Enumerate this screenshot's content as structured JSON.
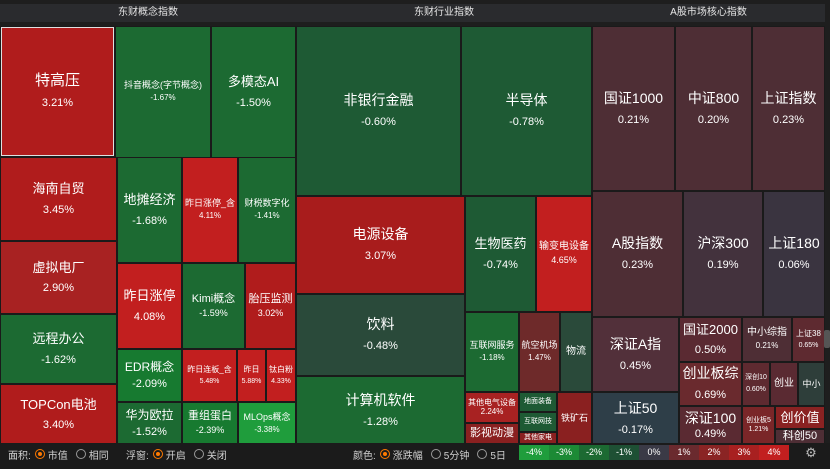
{
  "panels": [
    {
      "title": "东财概念指数"
    },
    {
      "title": "东财行业指数"
    },
    {
      "title": "A股市场核心指数"
    }
  ],
  "tiles": [
    {
      "name": "特高压",
      "pct": "3.21%",
      "color": "#b01c1c"
    },
    {
      "name": "抖音概念(字节概念)",
      "pct": "-1.67%",
      "color": "#1c6a32"
    },
    {
      "name": "多模态AI",
      "pct": "-1.50%",
      "color": "#1c6a32"
    },
    {
      "name": "海南自贸",
      "pct": "3.45%",
      "color": "#b01c1c"
    },
    {
      "name": "地摊经济",
      "pct": "-1.68%",
      "color": "#1c6a32"
    },
    {
      "name": "昨日涨停_含",
      "pct": "4.11%",
      "color": "#c21f1f"
    },
    {
      "name": "财税数字化",
      "pct": "-1.41%",
      "color": "#1c6a32"
    },
    {
      "name": "虚拟电厂",
      "pct": "2.90%",
      "color": "#a82222"
    },
    {
      "name": "昨日涨停",
      "pct": "4.08%",
      "color": "#c21f1f"
    },
    {
      "name": "Kimi概念",
      "pct": "-1.59%",
      "color": "#1c6a32"
    },
    {
      "name": "胎压监测",
      "pct": "3.02%",
      "color": "#b01c1c"
    },
    {
      "name": "远程办公",
      "pct": "-1.62%",
      "color": "#1c6a32"
    },
    {
      "name": "EDR概念",
      "pct": "-2.09%",
      "color": "#177a30"
    },
    {
      "name": "昨日连板_含",
      "pct": "5.48%",
      "color": "#c21f1f"
    },
    {
      "name": "昨日",
      "pct": "5.88%",
      "color": "#c21f1f"
    },
    {
      "name": "钛白粉",
      "pct": "4.33%",
      "color": "#c21f1f"
    },
    {
      "name": "TOPCon电池",
      "pct": "3.40%",
      "color": "#b01c1c"
    },
    {
      "name": "华为欧拉",
      "pct": "-1.52%",
      "color": "#1c6a32"
    },
    {
      "name": "重组蛋白",
      "pct": "-2.39%",
      "color": "#177a30"
    },
    {
      "name": "MLOps概念",
      "pct": "-3.38%",
      "color": "#1f9d3c"
    },
    {
      "name": "非银行金融",
      "pct": "-0.60%",
      "color": "#1e5a34"
    },
    {
      "name": "半导体",
      "pct": "-0.78%",
      "color": "#1e5a34"
    },
    {
      "name": "电源设备",
      "pct": "3.07%",
      "color": "#a81c1c"
    },
    {
      "name": "生物医药",
      "pct": "-0.74%",
      "color": "#1e5a34"
    },
    {
      "name": "输变电设备",
      "pct": "4.65%",
      "color": "#c21f1f"
    },
    {
      "name": "饮料",
      "pct": "-0.48%",
      "color": "#2a4a3a"
    },
    {
      "name": "互联网服务",
      "pct": "-1.18%",
      "color": "#1c6a32"
    },
    {
      "name": "航空机场",
      "pct": "1.47%",
      "color": "#6e2a2a"
    },
    {
      "name": "物流",
      "pct": "",
      "color": "#2a4a3a"
    },
    {
      "name": "计算机软件",
      "pct": "-1.28%",
      "color": "#1c6a32"
    },
    {
      "name": "其他电气设备",
      "pct": "2.24%",
      "color": "#a82222"
    },
    {
      "name": "地面装备",
      "pct": "",
      "color": "#1e5a34"
    },
    {
      "name": "互联网技",
      "pct": "",
      "color": "#1e5a34"
    },
    {
      "name": "影视动漫",
      "pct": "",
      "color": "#8a2020"
    },
    {
      "name": "其他家电",
      "pct": "",
      "color": "#8a2020"
    },
    {
      "name": "铁矿石",
      "pct": "",
      "color": "#8a2020"
    },
    {
      "name": "国证1000",
      "pct": "0.21%",
      "color": "#4e2e35"
    },
    {
      "name": "中证800",
      "pct": "0.20%",
      "color": "#4e2e35"
    },
    {
      "name": "上证指数",
      "pct": "0.23%",
      "color": "#4e2e35"
    },
    {
      "name": "A股指数",
      "pct": "0.23%",
      "color": "#4e2e35"
    },
    {
      "name": "沪深300",
      "pct": "0.19%",
      "color": "#43323d"
    },
    {
      "name": "上证180",
      "pct": "0.06%",
      "color": "#3a3440"
    },
    {
      "name": "深证A指",
      "pct": "0.45%",
      "color": "#52303a"
    },
    {
      "name": "国证2000",
      "pct": "0.50%",
      "color": "#5a2a32"
    },
    {
      "name": "中小综指",
      "pct": "0.21%",
      "color": "#4e2e35"
    },
    {
      "name": "上证38",
      "pct": "0.65%",
      "color": "#5e2a30"
    },
    {
      "name": "创业板综",
      "pct": "0.69%",
      "color": "#6a2a2e"
    },
    {
      "name": "深创10",
      "pct": "0.60%",
      "color": "#5e2a30"
    },
    {
      "name": "创业",
      "pct": "",
      "color": "#5a2a32"
    },
    {
      "name": "中小",
      "pct": "",
      "color": "#2e3e3a"
    },
    {
      "name": "上证50",
      "pct": "-0.17%",
      "color": "#2e3e48"
    },
    {
      "name": "深证100",
      "pct": "0.49%",
      "color": "#5a2a32"
    },
    {
      "name": "创业板5",
      "pct": "1.21%",
      "color": "#7a2628"
    },
    {
      "name": "创价值",
      "pct": "",
      "color": "#8a2222"
    },
    {
      "name": "科创50",
      "pct": "",
      "color": "#4e2e35"
    }
  ],
  "bottom": {
    "area_label": "面积:",
    "area_options": [
      "市值",
      "相同"
    ],
    "float_label": "浮窗:",
    "float_options": [
      "开启",
      "关闭"
    ],
    "color_label": "颜色:",
    "color_options": [
      "涨跌幅",
      "5分钟",
      "5日"
    ],
    "legend": [
      {
        "label": "-4%",
        "color": "#1f9d3c"
      },
      {
        "label": "-3%",
        "color": "#1c8a35"
      },
      {
        "label": "-2%",
        "color": "#1c6a32"
      },
      {
        "label": "-1%",
        "color": "#1e5034"
      },
      {
        "label": "0%",
        "color": "#3a3a46"
      },
      {
        "label": "1%",
        "color": "#6a2a2e"
      },
      {
        "label": "2%",
        "color": "#8a2424"
      },
      {
        "label": "3%",
        "color": "#a82020"
      },
      {
        "label": "4%",
        "color": "#c21f1f"
      }
    ]
  },
  "icons": {
    "settings": "gear-icon"
  }
}
